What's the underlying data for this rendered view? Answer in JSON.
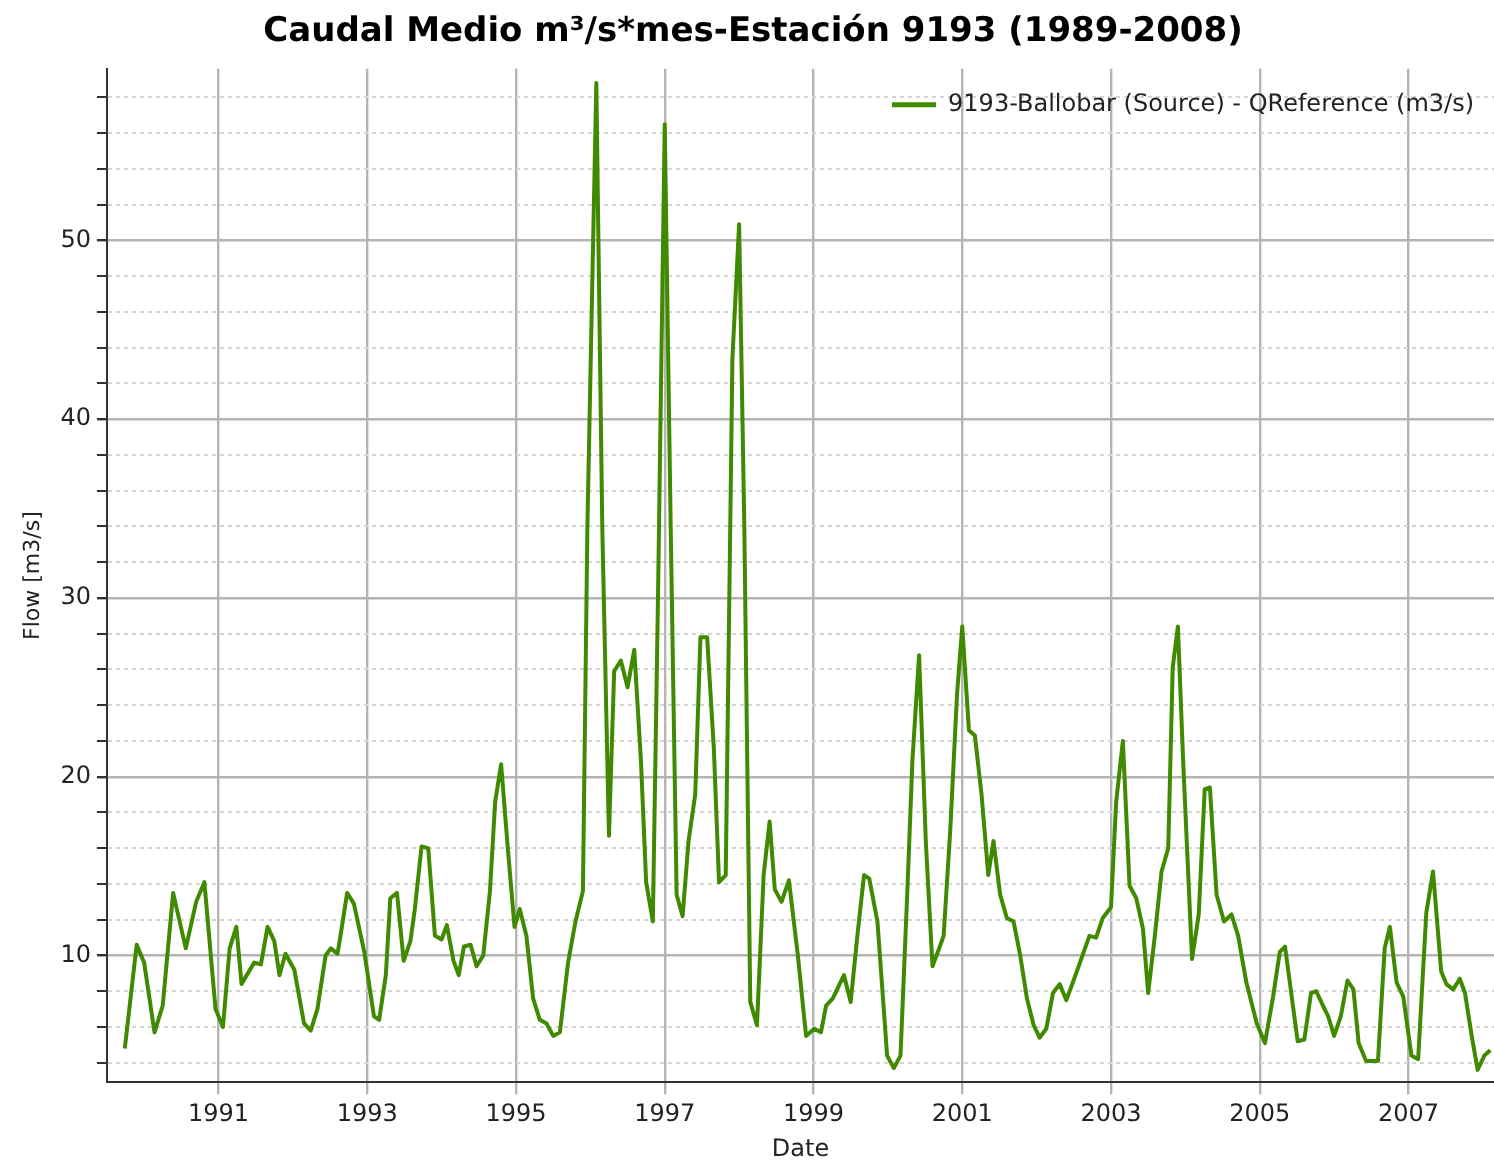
{
  "chart_data": {
    "type": "line",
    "title": "Caudal Medio m³/s*mes-Estación 9193 (1989-2008)",
    "xlabel": "Date",
    "ylabel": "Flow [m3/s]",
    "x": [
      1989.74,
      1989.9,
      1990.0,
      1990.14,
      1990.25,
      1990.39,
      1990.56,
      1990.7,
      1990.81,
      1990.96,
      1991.06,
      1991.15,
      1991.24,
      1991.31,
      1991.48,
      1991.57,
      1991.66,
      1991.75,
      1991.82,
      1991.9,
      1992.02,
      1992.15,
      1992.24,
      1992.33,
      1992.44,
      1992.51,
      1992.6,
      1992.64,
      1992.73,
      1992.82,
      1992.96,
      1993.09,
      1993.16,
      1993.25,
      1993.31,
      1993.4,
      1993.49,
      1993.58,
      1993.64,
      1993.73,
      1993.82,
      1993.91,
      1994.0,
      1994.07,
      1994.16,
      1994.23,
      1994.3,
      1994.39,
      1994.47,
      1994.56,
      1994.65,
      1994.72,
      1994.8,
      1994.89,
      1994.98,
      1995.05,
      1995.14,
      1995.23,
      1995.32,
      1995.41,
      1995.5,
      1995.59,
      1995.7,
      1995.8,
      1995.9,
      1995.96,
      1996.08,
      1996.16,
      1996.25,
      1996.32,
      1996.41,
      1996.5,
      1996.59,
      1996.68,
      1996.75,
      1996.84,
      1996.91,
      1997.0,
      1997.08,
      1997.16,
      1997.24,
      1997.32,
      1997.41,
      1997.48,
      1997.57,
      1997.66,
      1997.73,
      1997.82,
      1997.91,
      1998.0,
      1998.07,
      1998.15,
      1998.24,
      1998.33,
      1998.41,
      1998.48,
      1998.57,
      1998.67,
      1998.79,
      1998.9,
      1999.01,
      1999.1,
      1999.17,
      1999.26,
      1999.41,
      1999.5,
      1999.59,
      1999.68,
      1999.75,
      1999.86,
      1999.99,
      2000.08,
      2000.17,
      2000.26,
      2000.33,
      2000.42,
      2000.51,
      2000.6,
      2000.69,
      2000.75,
      2000.84,
      2000.93,
      2001.0,
      2001.09,
      2001.17,
      2001.26,
      2001.35,
      2001.42,
      2001.51,
      2001.6,
      2001.69,
      2001.78,
      2001.87,
      2001.96,
      2002.04,
      2002.13,
      2002.22,
      2002.31,
      2002.4,
      2002.54,
      2002.71,
      2002.8,
      2002.89,
      2003.0,
      2003.07,
      2003.16,
      2003.25,
      2003.34,
      2003.43,
      2003.5,
      2003.59,
      2003.68,
      2003.77,
      2003.83,
      2003.9,
      2003.97,
      2004.09,
      2004.18,
      2004.26,
      2004.33,
      2004.42,
      2004.52,
      2004.62,
      2004.71,
      2004.82,
      2004.96,
      2005.07,
      2005.18,
      2005.27,
      2005.34,
      2005.43,
      2005.51,
      2005.6,
      2005.69,
      2005.76,
      2005.85,
      2005.92,
      2006.0,
      2006.09,
      2006.18,
      2006.26,
      2006.33,
      2006.43,
      2006.59,
      2006.68,
      2006.75,
      2006.84,
      2006.93,
      2007.04,
      2007.13,
      2007.24,
      2007.33,
      2007.44,
      2007.51,
      2007.6,
      2007.69,
      2007.76,
      2007.85,
      2007.93,
      2008.02,
      2008.1
    ],
    "series": [
      {
        "name": "9193-Ballobar (Source) - QReference (m3/s)",
        "color": "#3f8a00",
        "values": [
          4.8,
          10.6,
          9.6,
          5.7,
          7.2,
          13.5,
          10.4,
          13.0,
          14.1,
          7.0,
          6.0,
          10.4,
          11.6,
          8.4,
          9.6,
          9.5,
          11.6,
          10.8,
          8.9,
          10.1,
          9.2,
          6.2,
          5.8,
          7.0,
          10.0,
          10.4,
          10.1,
          11.1,
          13.5,
          12.9,
          10.2,
          6.6,
          6.4,
          8.9,
          13.2,
          13.5,
          9.7,
          10.8,
          12.6,
          16.1,
          16.0,
          11.1,
          10.9,
          11.7,
          9.7,
          8.9,
          10.5,
          10.6,
          9.4,
          10.0,
          13.6,
          18.6,
          20.7,
          16.0,
          11.6,
          12.6,
          11.1,
          7.6,
          6.4,
          6.2,
          5.5,
          5.7,
          9.6,
          11.9,
          13.6,
          34.0,
          58.8,
          34.0,
          16.7,
          25.9,
          26.5,
          25.0,
          27.1,
          20.9,
          14.1,
          11.9,
          30.2,
          56.5,
          34.0,
          13.4,
          12.2,
          16.4,
          19.0,
          27.8,
          27.8,
          21.6,
          14.1,
          14.5,
          43.4,
          50.9,
          34.0,
          7.4,
          6.1,
          14.5,
          17.5,
          13.7,
          13.0,
          14.2,
          10.0,
          5.5,
          5.9,
          5.7,
          7.2,
          7.6,
          8.9,
          7.4,
          11.1,
          14.5,
          14.3,
          11.9,
          4.4,
          3.7,
          4.4,
          13.4,
          20.9,
          26.8,
          16.4,
          9.4,
          10.4,
          11.1,
          17.1,
          24.6,
          28.4,
          22.6,
          22.3,
          19.0,
          14.5,
          16.4,
          13.4,
          12.1,
          11.9,
          10.0,
          7.6,
          6.1,
          5.4,
          5.9,
          7.9,
          8.4,
          7.5,
          9.1,
          11.1,
          11.0,
          12.1,
          12.7,
          18.6,
          22.0,
          13.9,
          13.2,
          11.5,
          7.9,
          11.1,
          14.7,
          16.0,
          26.1,
          28.4,
          20.9,
          9.8,
          12.3,
          19.3,
          19.4,
          13.4,
          11.9,
          12.3,
          11.1,
          8.5,
          6.2,
          5.1,
          7.7,
          10.2,
          10.5,
          7.7,
          5.2,
          5.3,
          7.9,
          8.0,
          7.2,
          6.6,
          5.5,
          6.6,
          8.6,
          8.1,
          5.1,
          4.1,
          4.1,
          10.4,
          11.6,
          8.5,
          7.7,
          4.4,
          4.2,
          12.4,
          14.7,
          9.1,
          8.4,
          8.1,
          8.7,
          7.9,
          5.5,
          3.6,
          4.4,
          4.7
        ]
      }
    ],
    "xlim": [
      1989.5,
      2008.15
    ],
    "xticks": [
      1991,
      1993,
      1995,
      1997,
      1999,
      2001,
      2003,
      2005,
      2007
    ],
    "ylim": [
      2.9,
      59.6
    ],
    "yticks": [
      {
        "value": 4,
        "label": null
      },
      {
        "value": 6,
        "label": null
      },
      {
        "value": 8,
        "label": null
      },
      10,
      {
        "value": 12,
        "label": null
      },
      {
        "value": 14,
        "label": null
      },
      {
        "value": 16,
        "label": null
      },
      {
        "value": 18,
        "label": null
      },
      20,
      {
        "value": 22,
        "label": null
      },
      {
        "value": 24,
        "label": null
      },
      {
        "value": 26,
        "label": null
      },
      {
        "value": 28,
        "label": null
      },
      30,
      {
        "value": 32,
        "label": null
      },
      {
        "value": 34,
        "label": null
      },
      {
        "value": 36,
        "label": null
      },
      {
        "value": 38,
        "label": null
      },
      40,
      {
        "value": 42,
        "label": null
      },
      {
        "value": 44,
        "label": null
      },
      {
        "value": 46,
        "label": null
      },
      {
        "value": 48,
        "label": null
      },
      50,
      {
        "value": 52,
        "label": null
      },
      {
        "value": 54,
        "label": null
      },
      {
        "value": 56,
        "label": null
      },
      {
        "value": 58,
        "label": null
      }
    ],
    "grid": true,
    "legend": "top right",
    "marker": "none",
    "line_style": "solid"
  }
}
